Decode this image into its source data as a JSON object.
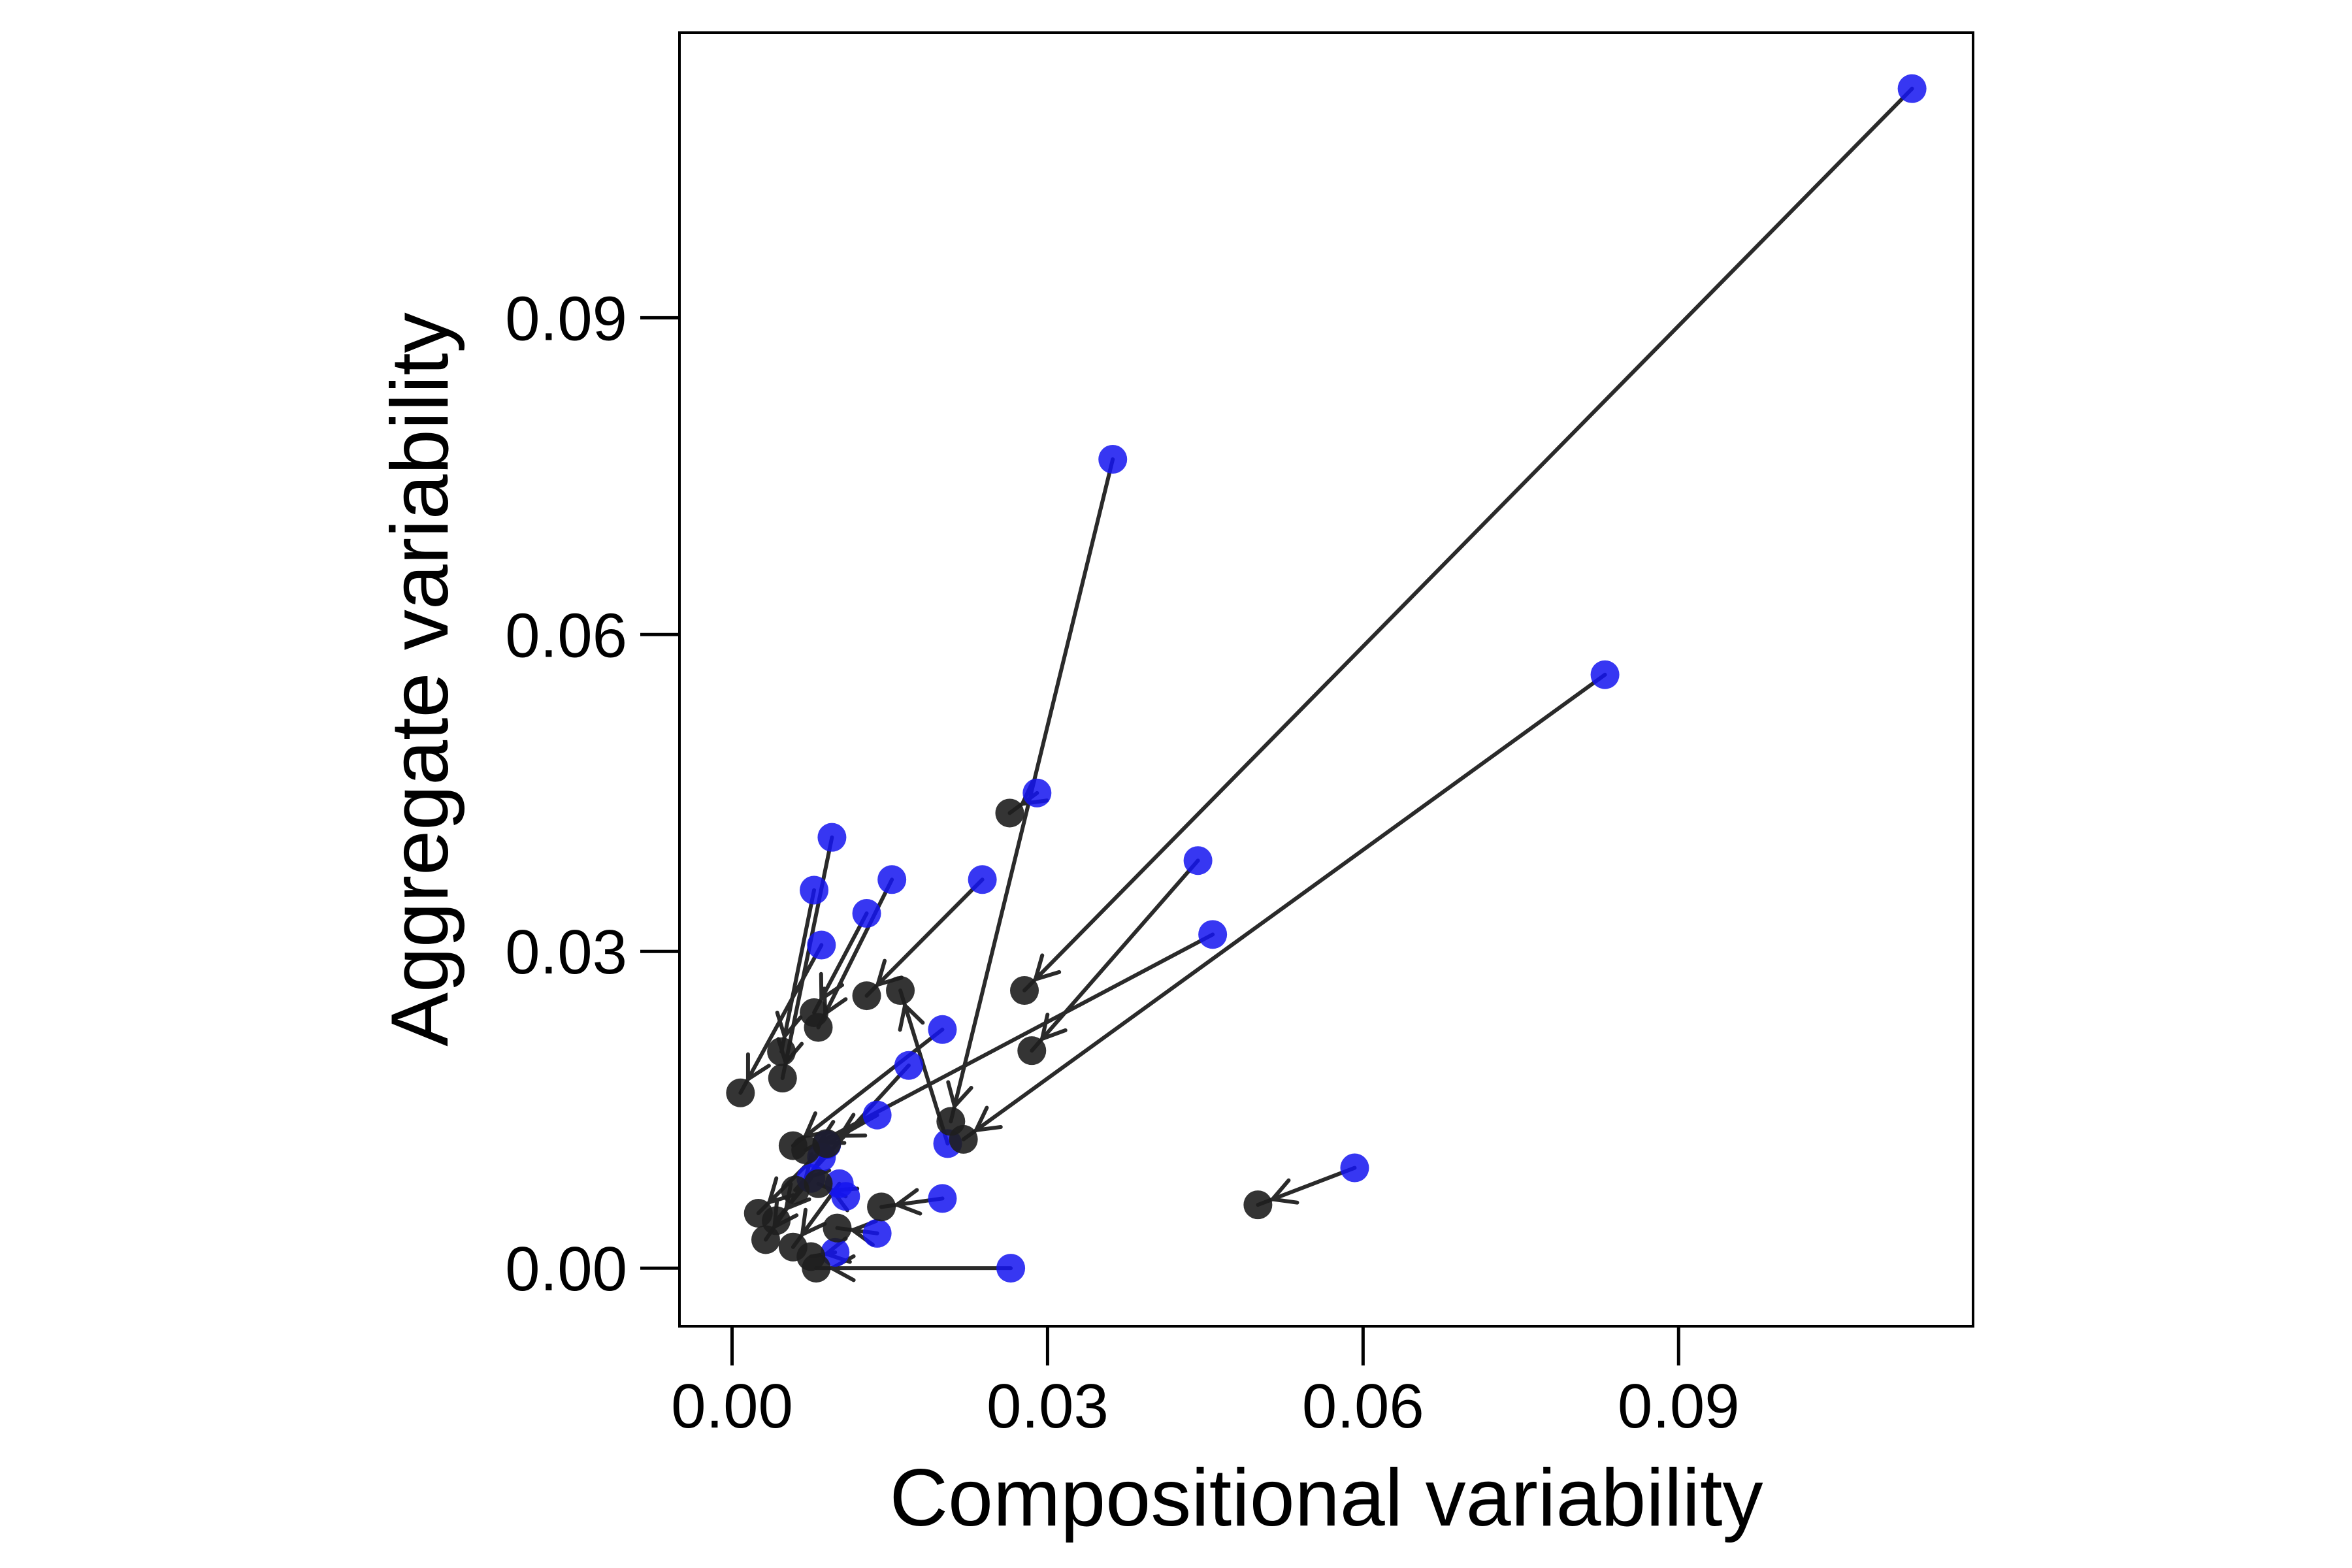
{
  "chart_data": {
    "type": "scatter",
    "title": "",
    "xlabel": "Compositional variability",
    "ylabel": "Aggregate variability",
    "xlim": [
      -0.005,
      0.118
    ],
    "ylim": [
      -0.0055,
      0.117
    ],
    "xticks": [
      0.0,
      0.03,
      0.06,
      0.09
    ],
    "yticks": [
      0.0,
      0.03,
      0.06,
      0.09
    ],
    "xtick_labels": [
      "0.00",
      "0.03",
      "0.06",
      "0.09"
    ],
    "ytick_labels": [
      "0.00",
      "0.03",
      "0.06",
      "0.09"
    ],
    "grid": false,
    "legend": "none",
    "colors": {
      "start_point": "#1414f0",
      "end_point": "#1e1e1e",
      "arrow": "#2a2a2a",
      "axes": "#000000"
    },
    "series": [
      {
        "values": [
          {
            "x0": 0.1122,
            "y0": 0.1117,
            "x1": 0.0278,
            "y1": 0.0263
          },
          {
            "x0": 0.083,
            "y0": 0.0562,
            "x1": 0.022,
            "y1": 0.0122
          },
          {
            "x0": 0.0362,
            "y0": 0.0766,
            "x1": 0.0208,
            "y1": 0.0139
          },
          {
            "x0": 0.0592,
            "y0": 0.0095,
            "x1": 0.05,
            "y1": 0.006
          },
          {
            "x0": 0.0457,
            "y0": 0.0316,
            "x1": 0.007,
            "y1": 0.0112
          },
          {
            "x0": 0.0443,
            "y0": 0.0386,
            "x1": 0.0285,
            "y1": 0.0206
          },
          {
            "x0": 0.029,
            "y0": 0.045,
            "x1": 0.0264,
            "y1": 0.0431
          },
          {
            "x0": 0.0265,
            "y0": 0.0,
            "x1": 0.008,
            "y1": 0.0
          },
          {
            "x0": 0.0238,
            "y0": 0.0368,
            "x1": 0.0128,
            "y1": 0.0258
          },
          {
            "x0": 0.02,
            "y0": 0.0226,
            "x1": 0.0058,
            "y1": 0.0116
          },
          {
            "x0": 0.0205,
            "y0": 0.0118,
            "x1": 0.016,
            "y1": 0.0263
          },
          {
            "x0": 0.0168,
            "y0": 0.0192,
            "x1": 0.006,
            "y1": 0.0074
          },
          {
            "x0": 0.0152,
            "y0": 0.0368,
            "x1": 0.0082,
            "y1": 0.0228
          },
          {
            "x0": 0.0128,
            "y0": 0.0336,
            "x1": 0.0078,
            "y1": 0.0242
          },
          {
            "x0": 0.02,
            "y0": 0.0066,
            "x1": 0.0142,
            "y1": 0.0058
          },
          {
            "x0": 0.0138,
            "y0": 0.0145,
            "x1": 0.009,
            "y1": 0.0118
          },
          {
            "x0": 0.0138,
            "y0": 0.0033,
            "x1": 0.01,
            "y1": 0.0038
          },
          {
            "x0": 0.0108,
            "y0": 0.0068,
            "x1": 0.0082,
            "y1": 0.008
          },
          {
            "x0": 0.0095,
            "y0": 0.0408,
            "x1": 0.0048,
            "y1": 0.018
          },
          {
            "x0": 0.0078,
            "y0": 0.0358,
            "x1": 0.0047,
            "y1": 0.0205
          },
          {
            "x0": 0.0085,
            "y0": 0.0306,
            "x1": 0.0008,
            "y1": 0.0166
          },
          {
            "x0": 0.0098,
            "y0": 0.0015,
            "x1": 0.0075,
            "y1": 0.0011
          },
          {
            "x0": 0.009,
            "y0": 0.0117,
            "x1": 0.0025,
            "y1": 0.0052
          },
          {
            "x0": 0.0102,
            "y0": 0.008,
            "x1": 0.0058,
            "y1": 0.002
          },
          {
            "x0": 0.0085,
            "y0": 0.0105,
            "x1": 0.0032,
            "y1": 0.0027
          },
          {
            "x0": 0.0075,
            "y0": 0.0085,
            "x1": 0.0042,
            "y1": 0.0045
          }
        ]
      }
    ]
  }
}
